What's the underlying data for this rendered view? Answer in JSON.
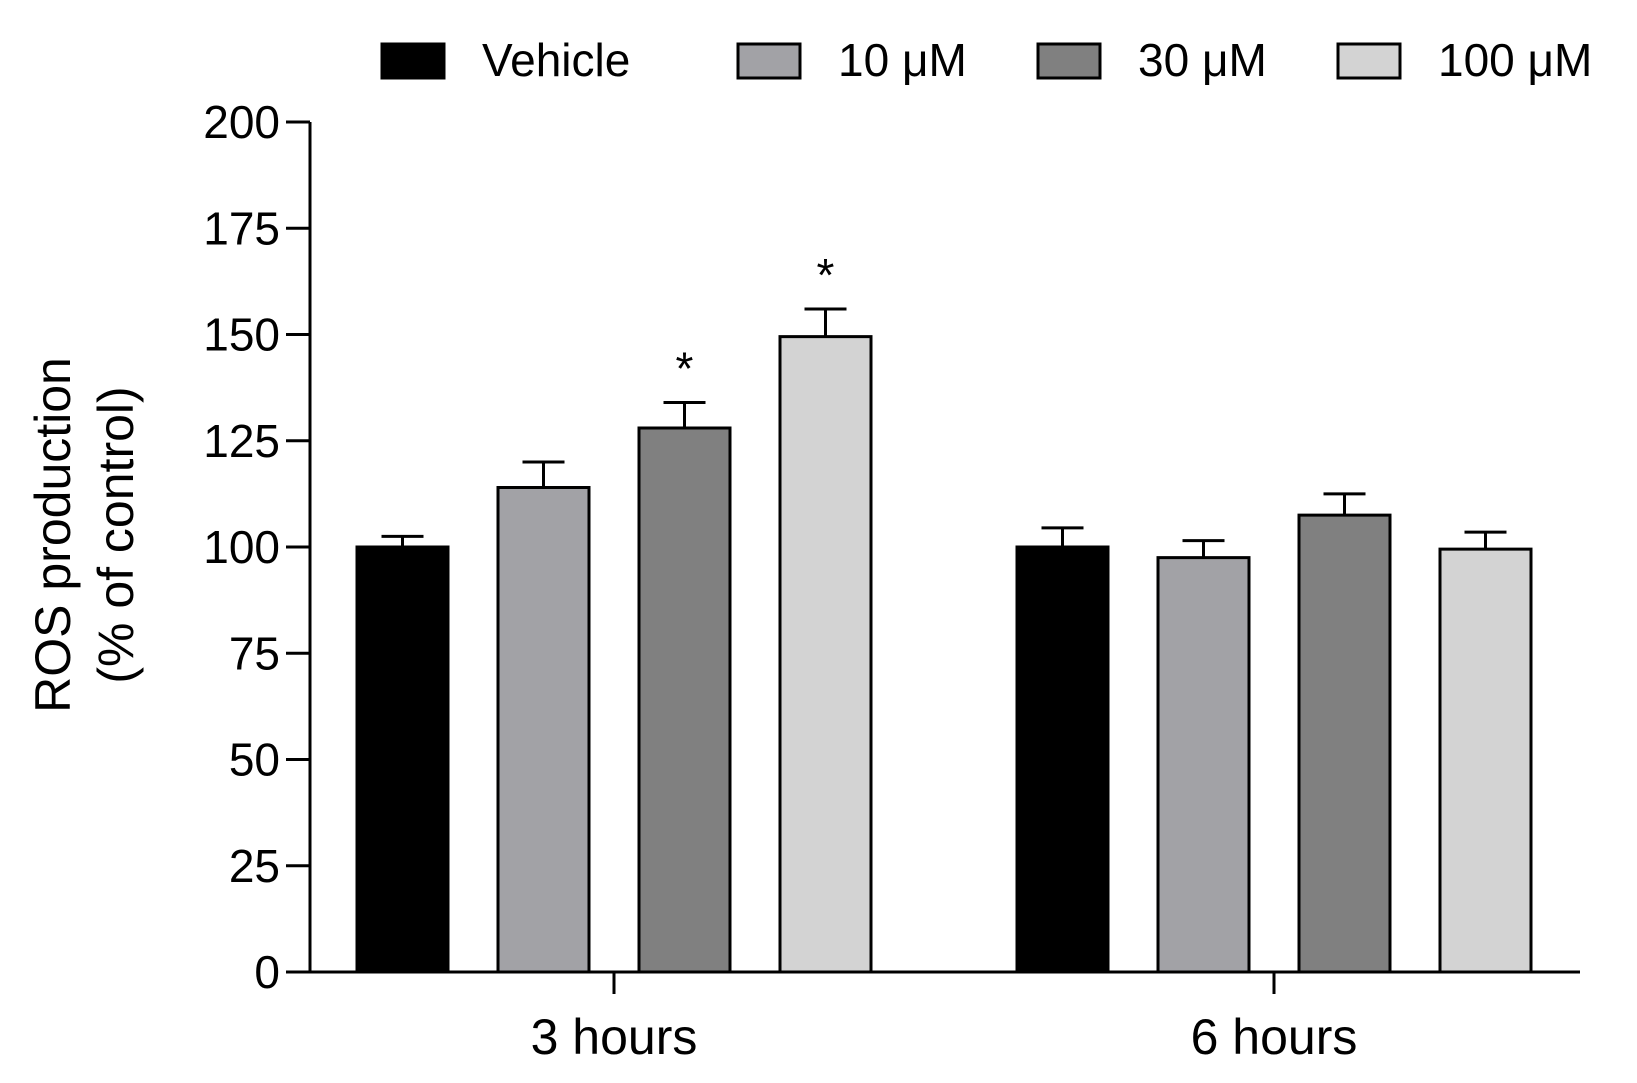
{
  "chart_data": {
    "type": "bar",
    "title": "",
    "xlabel": "",
    "ylabel_line1": "ROS production",
    "ylabel_line2": "(% of control)",
    "ylim": [
      0,
      200
    ],
    "yticks": [
      0,
      25,
      50,
      75,
      100,
      125,
      150,
      175,
      200
    ],
    "categories": [
      "3 hours",
      "6 hours"
    ],
    "legend_position": "top",
    "series": [
      {
        "name": "Vehicle",
        "color": "#000000",
        "values": [
          100,
          100
        ],
        "errors": [
          2.5,
          4.5
        ],
        "significance": [
          "",
          ""
        ]
      },
      {
        "name": "10 μM",
        "color": "#a2a2a6",
        "values": [
          114,
          97.5
        ],
        "errors": [
          6,
          4
        ],
        "significance": [
          "",
          ""
        ]
      },
      {
        "name": "30 μM",
        "color": "#808080",
        "values": [
          128,
          107.5
        ],
        "errors": [
          6,
          5
        ],
        "significance": [
          "*",
          ""
        ]
      },
      {
        "name": "100 μM",
        "color": "#d3d3d3",
        "values": [
          149.5,
          99.5
        ],
        "errors": [
          6.5,
          4
        ],
        "significance": [
          "*",
          ""
        ]
      }
    ]
  }
}
